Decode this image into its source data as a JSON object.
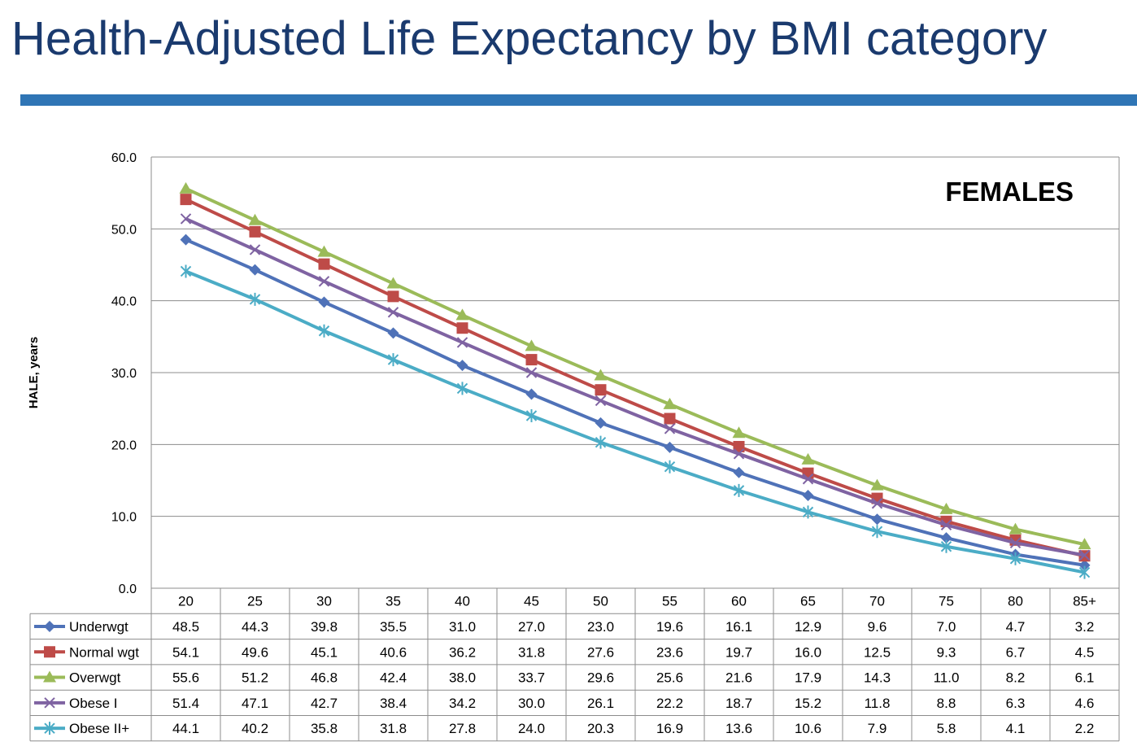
{
  "slide": {
    "title": "Health-Adjusted Life Expectancy by BMI category",
    "rule_color": "#2f75b5"
  },
  "chart_data": {
    "type": "line",
    "title": "FEMALES",
    "xlabel": "",
    "ylabel": "HALE, years",
    "ylim": [
      0,
      60
    ],
    "y_ticks": [
      "0.0",
      "10.0",
      "20.0",
      "30.0",
      "40.0",
      "50.0",
      "60.0"
    ],
    "grid": true,
    "legend": "data-table",
    "categories": [
      "20",
      "25",
      "30",
      "35",
      "40",
      "45",
      "50",
      "55",
      "60",
      "65",
      "70",
      "75",
      "80",
      "85+"
    ],
    "series": [
      {
        "name": "Underwgt",
        "color": "#4f72b8",
        "marker": "diamond",
        "values": [
          48.5,
          44.3,
          39.8,
          35.5,
          31.0,
          27.0,
          23.0,
          19.6,
          16.1,
          12.9,
          9.6,
          7.0,
          4.7,
          3.2
        ],
        "labels": [
          "48.5",
          "44.3",
          "39.8",
          "35.5",
          "31.0",
          "27.0",
          "23.0",
          "19.6",
          "16.1",
          "12.9",
          "9.6",
          "7.0",
          "4.7",
          "3.2"
        ]
      },
      {
        "name": "Normal wgt",
        "color": "#be4b48",
        "marker": "square",
        "values": [
          54.1,
          49.6,
          45.1,
          40.6,
          36.2,
          31.8,
          27.6,
          23.6,
          19.7,
          16.0,
          12.5,
          9.3,
          6.7,
          4.5
        ],
        "labels": [
          "54.1",
          "49.6",
          "45.1",
          "40.6",
          "36.2",
          "31.8",
          "27.6",
          "23.6",
          "19.7",
          "16.0",
          "12.5",
          "9.3",
          "6.7",
          "4.5"
        ]
      },
      {
        "name": "Overwgt",
        "color": "#9bbb59",
        "marker": "triangle",
        "values": [
          55.6,
          51.2,
          46.8,
          42.4,
          38.0,
          33.7,
          29.6,
          25.6,
          21.6,
          17.9,
          14.3,
          11.0,
          8.2,
          6.1
        ],
        "labels": [
          "55.6",
          "51.2",
          "46.8",
          "42.4",
          "38.0",
          "33.7",
          "29.6",
          "25.6",
          "21.6",
          "17.9",
          "14.3",
          "11.0",
          "8.2",
          "6.1"
        ]
      },
      {
        "name": "Obese I",
        "color": "#7f63a2",
        "marker": "x",
        "values": [
          51.4,
          47.1,
          42.7,
          38.4,
          34.2,
          30.0,
          26.1,
          22.2,
          18.7,
          15.2,
          11.8,
          8.8,
          6.3,
          4.6
        ],
        "labels": [
          "51.4",
          "47.1",
          "42.7",
          "38.4",
          "34.2",
          "30.0",
          "26.1",
          "22.2",
          "18.7",
          "15.2",
          "11.8",
          "8.8",
          "6.3",
          "4.6"
        ]
      },
      {
        "name": "Obese II+",
        "color": "#4bacc6",
        "marker": "star",
        "values": [
          44.1,
          40.2,
          35.8,
          31.8,
          27.8,
          24.0,
          20.3,
          16.9,
          13.6,
          10.6,
          7.9,
          5.8,
          4.1,
          2.2
        ],
        "labels": [
          "44.1",
          "40.2",
          "35.8",
          "31.8",
          "27.8",
          "24.0",
          "20.3",
          "16.9",
          "13.6",
          "10.6",
          "7.9",
          "5.8",
          "4.1",
          "2.2"
        ]
      }
    ]
  }
}
